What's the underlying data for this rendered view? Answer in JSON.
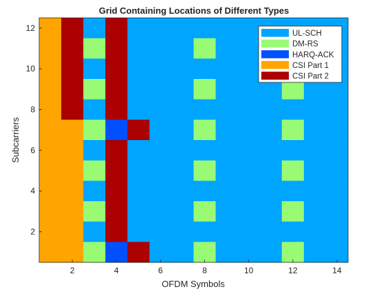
{
  "chart_data": {
    "type": "heatmap",
    "title": "Grid Containing Locations of Different Types",
    "xlabel": "OFDM Symbols",
    "ylabel": "Subcarriers",
    "xlim": [
      0.5,
      14.5
    ],
    "ylim": [
      0.5,
      12.5
    ],
    "xticks": [
      2,
      4,
      6,
      8,
      10,
      12,
      14
    ],
    "yticks": [
      2,
      4,
      6,
      8,
      10,
      12
    ],
    "legend_position": "top-right",
    "categories": [
      {
        "code": "U",
        "name": "UL-SCH",
        "color": "#00a5ff"
      },
      {
        "code": "D",
        "name": "DM-RS",
        "color": "#99fa74"
      },
      {
        "code": "H",
        "name": "HARQ-ACK",
        "color": "#0050ff"
      },
      {
        "code": "P",
        "name": "CSI Part 1",
        "color": "#ffa500"
      },
      {
        "code": "Q",
        "name": "CSI Part 2",
        "color": "#aa0000"
      }
    ],
    "grid_rows_top_to_bottom": [
      "PQUQUUUUUUUUUU",
      "PQDQUUUDUUUUUU",
      "PQUQUUUUUUUUUU",
      "PQDQUUUDUUUDUU",
      "PQUQUUUUUUUUUU",
      "PPDHQUUDUUUDUU",
      "PPUQUUUUUUUUUU",
      "PPDQUUUDUUUDUU",
      "PPUQUUUUUUUUUU",
      "PPDQUUUDUUUDUU",
      "PPUQUUUUUUUUUU",
      "PPDHQUUDUUUDUU"
    ]
  }
}
